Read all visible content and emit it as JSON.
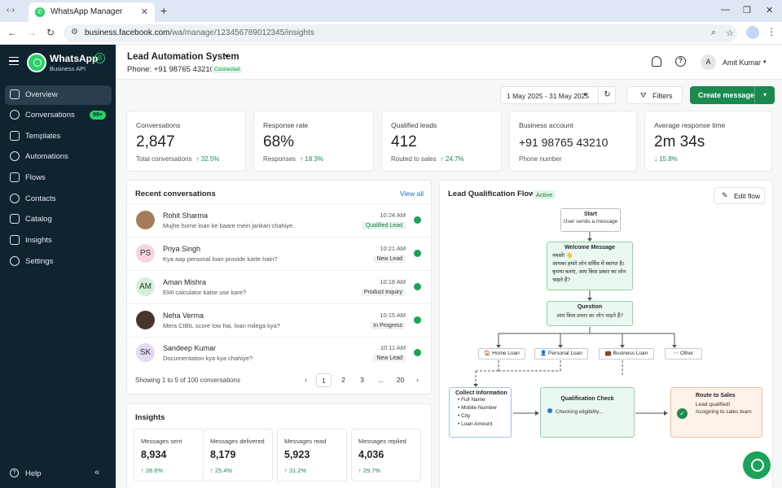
{
  "browser": {
    "tab_title": "WhatsApp Manager",
    "url_host": "business.facebook.com",
    "url_path": "/wa/manage/123456789012345/insights"
  },
  "sidebar": {
    "brand": "WhatsApp",
    "brand_badge": "B",
    "brand_sub": "Business API",
    "items": [
      {
        "label": "Overview",
        "icon": "home-icon",
        "active": true
      },
      {
        "label": "Conversations",
        "icon": "chat-icon",
        "badge": "99+"
      },
      {
        "label": "Templates",
        "icon": "file-icon"
      },
      {
        "label": "Automations",
        "icon": "automation-icon"
      },
      {
        "label": "Flows",
        "icon": "flow-icon"
      },
      {
        "label": "Contacts",
        "icon": "contacts-icon"
      },
      {
        "label": "Catalog",
        "icon": "catalog-icon"
      },
      {
        "label": "Insights",
        "icon": "bar-chart-icon"
      },
      {
        "label": "Settings",
        "icon": "gear-icon"
      }
    ],
    "help": "Help"
  },
  "header": {
    "title": "Lead Automation System",
    "phone": "Phone: +91 98765 43210",
    "status": "Connected",
    "user_initial": "A",
    "user_name": "Amit Kumar"
  },
  "controls": {
    "date_range": "1 May 2025 - 31 May 2025",
    "filters": "Filters",
    "create": "Create message"
  },
  "stats": [
    {
      "label": "Conversations",
      "value": "2,847",
      "sub": "Total conversations",
      "delta": "↑ 32.5%"
    },
    {
      "label": "Response rate",
      "value": "68%",
      "sub": "Responses",
      "delta": "↑ 18.3%"
    },
    {
      "label": "Qualified leads",
      "value": "412",
      "sub": "Routed to sales",
      "delta": "↑ 24.7%"
    },
    {
      "label": "Business account",
      "value": "+91 98765 43210",
      "sub": "Phone number",
      "delta": ""
    },
    {
      "label": "Average response time",
      "value": "2m 34s",
      "sub": "",
      "delta": "↓ 15.8%"
    }
  ],
  "recent": {
    "title": "Recent conversations",
    "view_all": "View all",
    "rows": [
      {
        "name": "Rohit Sharma",
        "initials": "",
        "message": "Mujhe home loan ke baare mein jankari chahiye.",
        "time": "10:24 AM",
        "tag": "Qualified Lead"
      },
      {
        "name": "Priya Singh",
        "initials": "PS",
        "message": "Kya aap personal loan provide karte hain?",
        "time": "10:21 AM",
        "tag": "New Lead"
      },
      {
        "name": "Aman Mishra",
        "initials": "AM",
        "message": "EMI calculator kaise use kare?",
        "time": "10:18 AM",
        "tag": "Product Inquiry"
      },
      {
        "name": "Neha Verma",
        "initials": "",
        "message": "Mera CIBIL score low hai, loan milega kya?",
        "time": "10:15 AM",
        "tag": "In Progress"
      },
      {
        "name": "Sandeep Kumar",
        "initials": "SK",
        "message": "Documentation kya kya chahiye?",
        "time": "10:11 AM",
        "tag": "New Lead"
      }
    ],
    "pager_info": "Showing 1 to 5 of 100 conversations",
    "pages": [
      "‹",
      "1",
      "2",
      "3",
      "...",
      "20",
      "›"
    ]
  },
  "insights": {
    "title": "Insights",
    "cards": [
      {
        "label": "Messages sent",
        "value": "8,934",
        "delta": "↑ 28.6%"
      },
      {
        "label": "Messages delivered",
        "value": "8,179",
        "delta": "↑ 25.4%"
      },
      {
        "label": "Messages read",
        "value": "5,923",
        "delta": "↑ 31.2%"
      },
      {
        "label": "Messages replied",
        "value": "4,036",
        "delta": "↑ 29.7%"
      }
    ]
  },
  "flow": {
    "title": "Lead Qualification Flow",
    "status": "Active",
    "edit": "Edit flow",
    "start_title": "Start",
    "start_sub": "User sends a message",
    "welcome_title": "Welcome Message",
    "welcome_l1": "नमस्ते! 👋",
    "welcome_l2": "आपका हमारे लोन सर्विस में स्वागत है।",
    "welcome_l3": "कृपया बताएं, आप किस प्रकार का लोन",
    "welcome_l4": "चाहते हैं?",
    "question_title": "Question",
    "question_sub": "आप किस प्रकार का लोन चाहते हैं?",
    "options": [
      "🏠 Home Loan",
      "👤 Personal Loan",
      "💼 Business Loan",
      "⋯ Other"
    ],
    "collect_title": "Collect Information",
    "collect_items": [
      "• Full Name",
      "• Mobile Number",
      "• City",
      "• Loan Amount"
    ],
    "check_title": "Qualification Check",
    "check_sub": "Checking eligibility...",
    "route_title": "Route to Sales",
    "route_l1": "Lead qualified!",
    "route_l2": "Assigning to sales team"
  }
}
